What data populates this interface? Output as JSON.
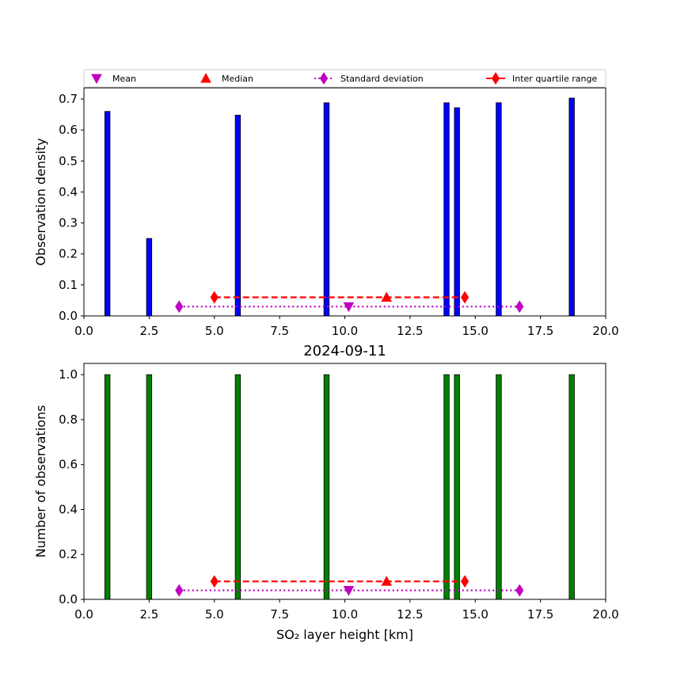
{
  "chart_data": [
    {
      "type": "bar",
      "xlabel": "",
      "ylabel": "Observation density",
      "title": "",
      "xlim": [
        0,
        20
      ],
      "ylim": [
        0,
        0.736
      ],
      "xticks": [
        "0.0",
        "2.5",
        "5.0",
        "7.5",
        "10.0",
        "12.5",
        "15.0",
        "17.5",
        "20.0"
      ],
      "yticks": [
        "0.0",
        "0.1",
        "0.2",
        "0.3",
        "0.4",
        "0.5",
        "0.6",
        "0.7"
      ],
      "bar_color": "#0000ff",
      "x": [
        0.9,
        2.5,
        5.9,
        9.3,
        13.9,
        14.3,
        15.9,
        18.7
      ],
      "values": [
        0.66,
        0.25,
        0.648,
        0.688,
        0.688,
        0.672,
        0.688,
        0.703
      ],
      "bar_width": 0.2,
      "stats": {
        "std_y": 0.03,
        "std_x": [
          3.65,
          16.7
        ],
        "mean": [
          10.15,
          0.03
        ],
        "iqr_y": 0.06,
        "iqr_x": [
          5.0,
          14.6
        ],
        "median": [
          11.6,
          0.06
        ]
      },
      "legend": {
        "placement": "top",
        "entries": [
          {
            "label": "Mean",
            "color": "#bf00bf",
            "marker": "triangle-down"
          },
          {
            "label": "Median",
            "color": "#ff0000",
            "marker": "triangle-up"
          },
          {
            "label": "Standard deviation",
            "color": "#bf00bf",
            "marker": "thin-diamond",
            "line": "dotted"
          },
          {
            "label": "Inter quartile range",
            "color": "#ff0000",
            "marker": "thin-diamond",
            "line": "solid"
          }
        ]
      }
    },
    {
      "type": "bar",
      "xlabel": "SO₂ layer height [km]",
      "ylabel": "Number of observations",
      "title": "2024-09-11",
      "xlim": [
        0,
        20
      ],
      "ylim": [
        0,
        1.05
      ],
      "xticks": [
        "0.0",
        "2.5",
        "5.0",
        "7.5",
        "10.0",
        "12.5",
        "15.0",
        "17.5",
        "20.0"
      ],
      "yticks": [
        "0.0",
        "0.2",
        "0.4",
        "0.6",
        "0.8",
        "1.0"
      ],
      "bar_color": "#008000",
      "x": [
        0.9,
        2.5,
        5.9,
        9.3,
        13.9,
        14.3,
        15.9,
        18.7
      ],
      "values": [
        1,
        1,
        1,
        1,
        1,
        1,
        1,
        1
      ],
      "bar_width": 0.2,
      "stats": {
        "std_y": 0.04,
        "std_x": [
          3.65,
          16.7
        ],
        "mean": [
          10.15,
          0.04
        ],
        "iqr_y": 0.08,
        "iqr_x": [
          5.0,
          14.6
        ],
        "median": [
          11.6,
          0.08
        ]
      }
    }
  ]
}
